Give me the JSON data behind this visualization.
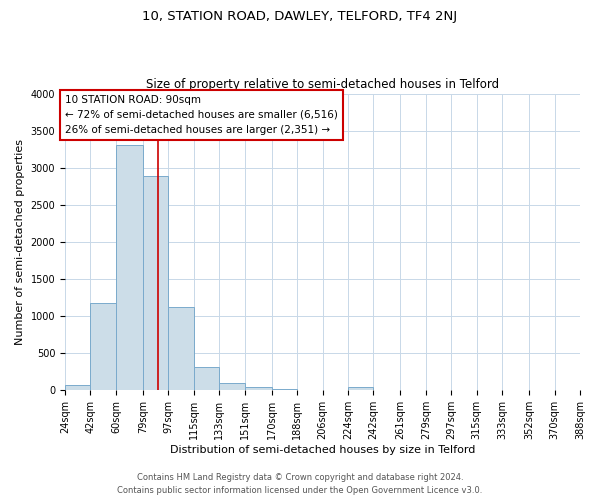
{
  "title": "10, STATION ROAD, DAWLEY, TELFORD, TF4 2NJ",
  "subtitle": "Size of property relative to semi-detached houses in Telford",
  "xlabel": "Distribution of semi-detached houses by size in Telford",
  "ylabel": "Number of semi-detached properties",
  "bin_edges": [
    24,
    42,
    60,
    79,
    97,
    115,
    133,
    151,
    170,
    188,
    206,
    224,
    242,
    261,
    279,
    297,
    315,
    333,
    352,
    370,
    388
  ],
  "bin_heights": [
    70,
    1180,
    3300,
    2890,
    1130,
    320,
    100,
    50,
    20,
    10,
    5,
    40,
    5,
    5,
    5,
    5,
    5,
    5,
    5,
    5
  ],
  "bar_facecolor": "#ccdde8",
  "bar_edgecolor": "#7aaacc",
  "property_line_x": 90,
  "property_line_color": "#cc0000",
  "ylim": [
    0,
    4000
  ],
  "yticks": [
    0,
    500,
    1000,
    1500,
    2000,
    2500,
    3000,
    3500,
    4000
  ],
  "annotation_title": "10 STATION ROAD: 90sqm",
  "annotation_line1": "← 72% of semi-detached houses are smaller (6,516)",
  "annotation_line2": "26% of semi-detached houses are larger (2,351) →",
  "annotation_box_facecolor": "#ffffff",
  "annotation_box_edgecolor": "#cc0000",
  "background_color": "#ffffff",
  "grid_color": "#c8d8e8",
  "footer_line1": "Contains HM Land Registry data © Crown copyright and database right 2024.",
  "footer_line2": "Contains public sector information licensed under the Open Government Licence v3.0.",
  "title_fontsize": 9.5,
  "subtitle_fontsize": 8.5,
  "xlabel_fontsize": 8,
  "ylabel_fontsize": 8,
  "tick_fontsize": 7,
  "annotation_fontsize": 7.5,
  "footer_fontsize": 6
}
